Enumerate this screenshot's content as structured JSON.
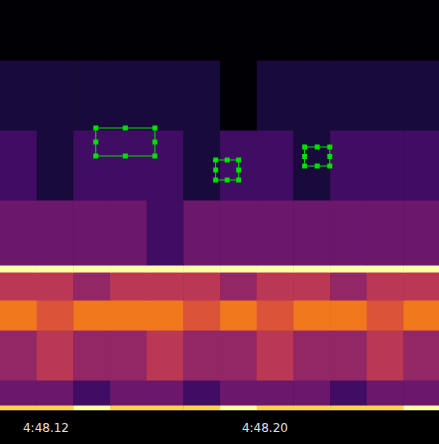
{
  "chart_data": {
    "type": "spectrogram",
    "xlim": [
      288.1032,
      288.2636
    ],
    "xticks": [
      {
        "value": 288.12,
        "label": "4:48.12"
      },
      {
        "value": 288.2,
        "label": "4:48.20"
      }
    ],
    "ylim": [
      0,
      41
    ],
    "tick_labels": "x",
    "grid": false,
    "cells": {
      "x_edges": [
        288.1032,
        288.1166,
        288.13,
        288.1434,
        288.1568,
        288.1702,
        288.1836,
        288.197,
        288.2104,
        288.2238,
        288.2372,
        288.2506,
        288.2636
      ],
      "y_edges": [
        0,
        0.5,
        3,
        8,
        11,
        13.8,
        14.5,
        21,
        28,
        35,
        41
      ],
      "values": [
        [
          9,
          9,
          10,
          9,
          9,
          9,
          10,
          9,
          9,
          9,
          9,
          10
        ],
        [
          3,
          3,
          2,
          3,
          3,
          2,
          3,
          3,
          3,
          2,
          3,
          3
        ],
        [
          4,
          5,
          4,
          4,
          5,
          4,
          4,
          5,
          4,
          4,
          5,
          4
        ],
        [
          7,
          6,
          7,
          7,
          7,
          6,
          7,
          6,
          7,
          7,
          6,
          7
        ],
        [
          5,
          5,
          4,
          5,
          5,
          5,
          4,
          5,
          5,
          4,
          5,
          5
        ],
        [
          10,
          10,
          10,
          10,
          10,
          10,
          10,
          10,
          10,
          10,
          10,
          10
        ],
        [
          3,
          3,
          3,
          3,
          2,
          3,
          3,
          3,
          3,
          3,
          3,
          3
        ],
        [
          2,
          1,
          2,
          2,
          2,
          1,
          2,
          2,
          1,
          2,
          2,
          2
        ],
        [
          1,
          1,
          1,
          1,
          1,
          1,
          0,
          1,
          1,
          1,
          1,
          1
        ],
        [
          0,
          0,
          0,
          0,
          0,
          0,
          0,
          0,
          0,
          0,
          0,
          0
        ]
      ],
      "clim": [
        0,
        10
      ]
    },
    "annotations": {
      "color": "#00e000",
      "boxes": [
        {
          "x": [
            288.1382,
            288.1598
          ],
          "y": [
            25.4,
            28.2
          ]
        },
        {
          "x": [
            288.182,
            288.1904
          ],
          "y": [
            23.0,
            25.0
          ]
        },
        {
          "x": [
            288.2145,
            288.2237
          ],
          "y": [
            24.4,
            26.3
          ]
        }
      ]
    }
  }
}
